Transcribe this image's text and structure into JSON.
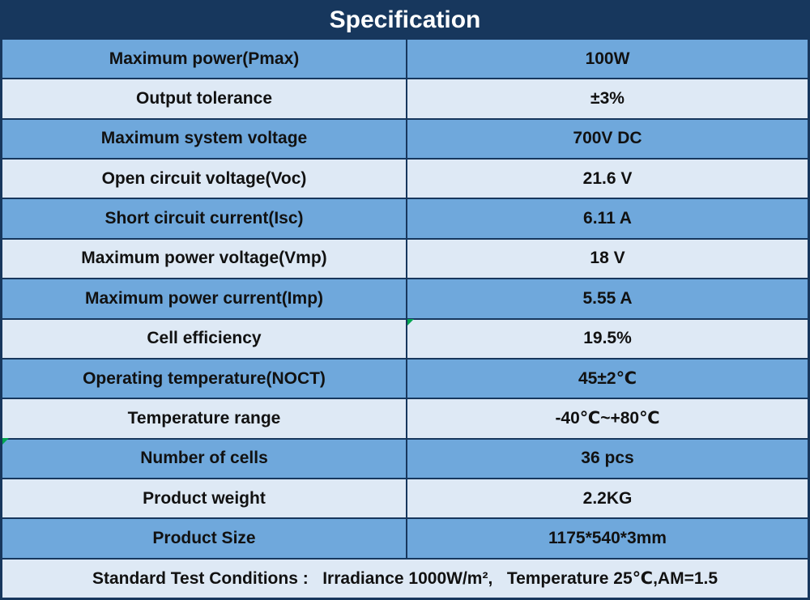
{
  "title": "Specification",
  "rows": [
    {
      "label": "Maximum power(Pmax)",
      "value": "100W"
    },
    {
      "label": "Output tolerance",
      "value": "±3%"
    },
    {
      "label": "Maximum system voltage",
      "value": "700V DC"
    },
    {
      "label": "Open circuit voltage(Voc)",
      "value": "21.6 V"
    },
    {
      "label": "Short circuit current(Isc)",
      "value": "6.11 A"
    },
    {
      "label": "Maximum power voltage(Vmp)",
      "value": "18 V"
    },
    {
      "label": "Maximum power current(Imp)",
      "value": "5.55 A"
    },
    {
      "label": "Cell efficiency",
      "value": "19.5%"
    },
    {
      "label": "Operating temperature(NOCT)",
      "value": "45±2℃"
    },
    {
      "label": "Temperature range",
      "value": "-40℃~+80℃"
    },
    {
      "label": "Number of cells",
      "value": "36 pcs"
    },
    {
      "label": "Product weight",
      "value": "2.2KG"
    },
    {
      "label": "Product Size",
      "value": "1175*540*3mm"
    }
  ],
  "footer": "Standard Test Conditions :   Irradiance 1000W/m²,   Temperature 25℃,AM=1.5",
  "colors": {
    "header_bg": "#17375D",
    "row_blue": "#6FA8DC",
    "row_light": "#DEE9F5",
    "border": "#17375D",
    "text": "#111111",
    "title_text": "#FFFFFF",
    "marker_green": "#00A650"
  }
}
